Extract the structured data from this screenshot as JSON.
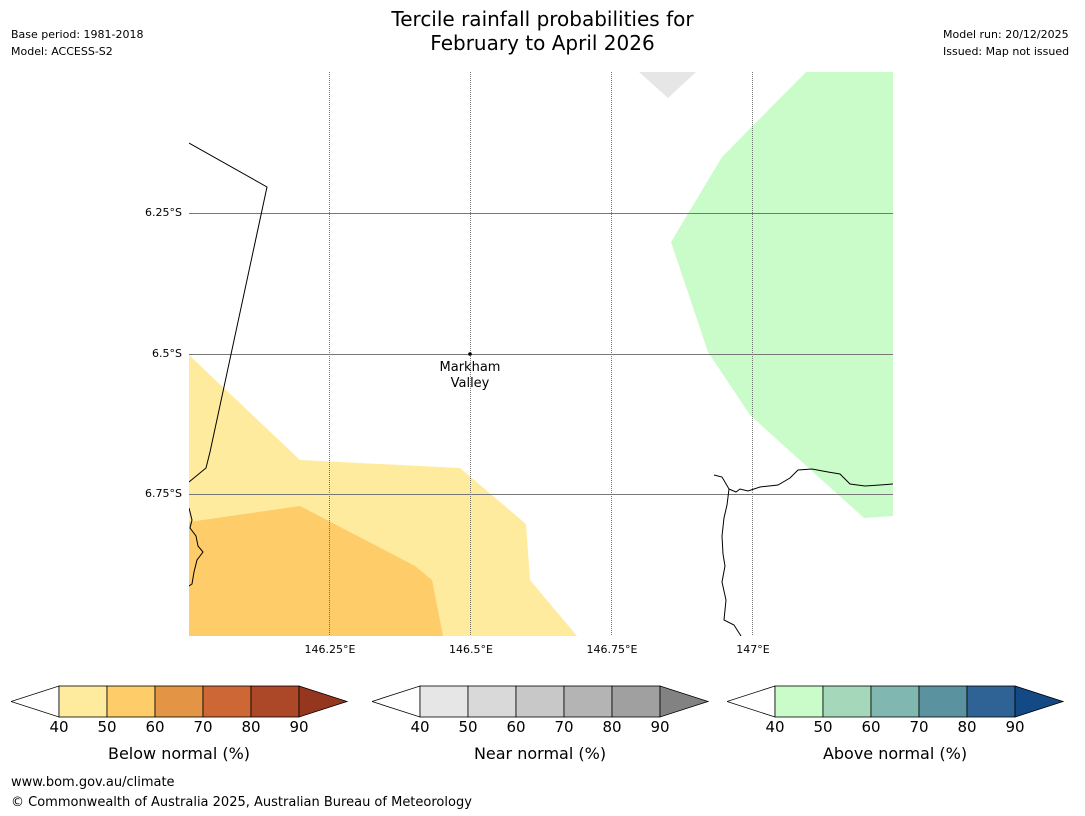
{
  "header": {
    "title_line1": "Tercile rainfall probabilities for",
    "title_line2": "February to April 2026",
    "base_period": "Base period: 1981-2018",
    "model": "Model: ACCESS-S2",
    "model_run": "Model run: 20/12/2025",
    "issued": "Issued: Map not issued"
  },
  "map": {
    "lat_labels": [
      "6.25°S",
      "6.5°S",
      "6.75°S"
    ],
    "lon_labels": [
      "146.25°E",
      "146.5°E",
      "146.75°E",
      "147°E"
    ],
    "place": {
      "name_line1": "Markham",
      "name_line2": "Valley"
    },
    "colors": {
      "below_40_50": "#ffeb9e",
      "below_50_60": "#fecc68",
      "near_40_50": "#e6e6e6",
      "above_40_50": "#c9fcc9"
    }
  },
  "legends": [
    {
      "label": "Below normal (%)",
      "ticks": [
        "40",
        "50",
        "60",
        "70",
        "80",
        "90"
      ],
      "colors": [
        "#ffffff",
        "#ffeb9e",
        "#fecc68",
        "#e39545",
        "#cd6735",
        "#ac4828",
        "#95361f"
      ]
    },
    {
      "label": "Near normal (%)",
      "ticks": [
        "40",
        "50",
        "60",
        "70",
        "80",
        "90"
      ],
      "colors": [
        "#ffffff",
        "#e6e6e6",
        "#d9d9d9",
        "#c8c8c8",
        "#b4b4b4",
        "#a0a0a0",
        "#828282"
      ]
    },
    {
      "label": "Above normal (%)",
      "ticks": [
        "40",
        "50",
        "60",
        "70",
        "80",
        "90"
      ],
      "colors": [
        "#ffffff",
        "#c9fcc9",
        "#a5d8ba",
        "#80b7b0",
        "#5a92a0",
        "#2f6395",
        "#134a85"
      ]
    }
  ],
  "footer": {
    "url": "www.bom.gov.au/climate",
    "copyright": "© Commonwealth of Australia 2025, Australian Bureau of Meteorology"
  }
}
